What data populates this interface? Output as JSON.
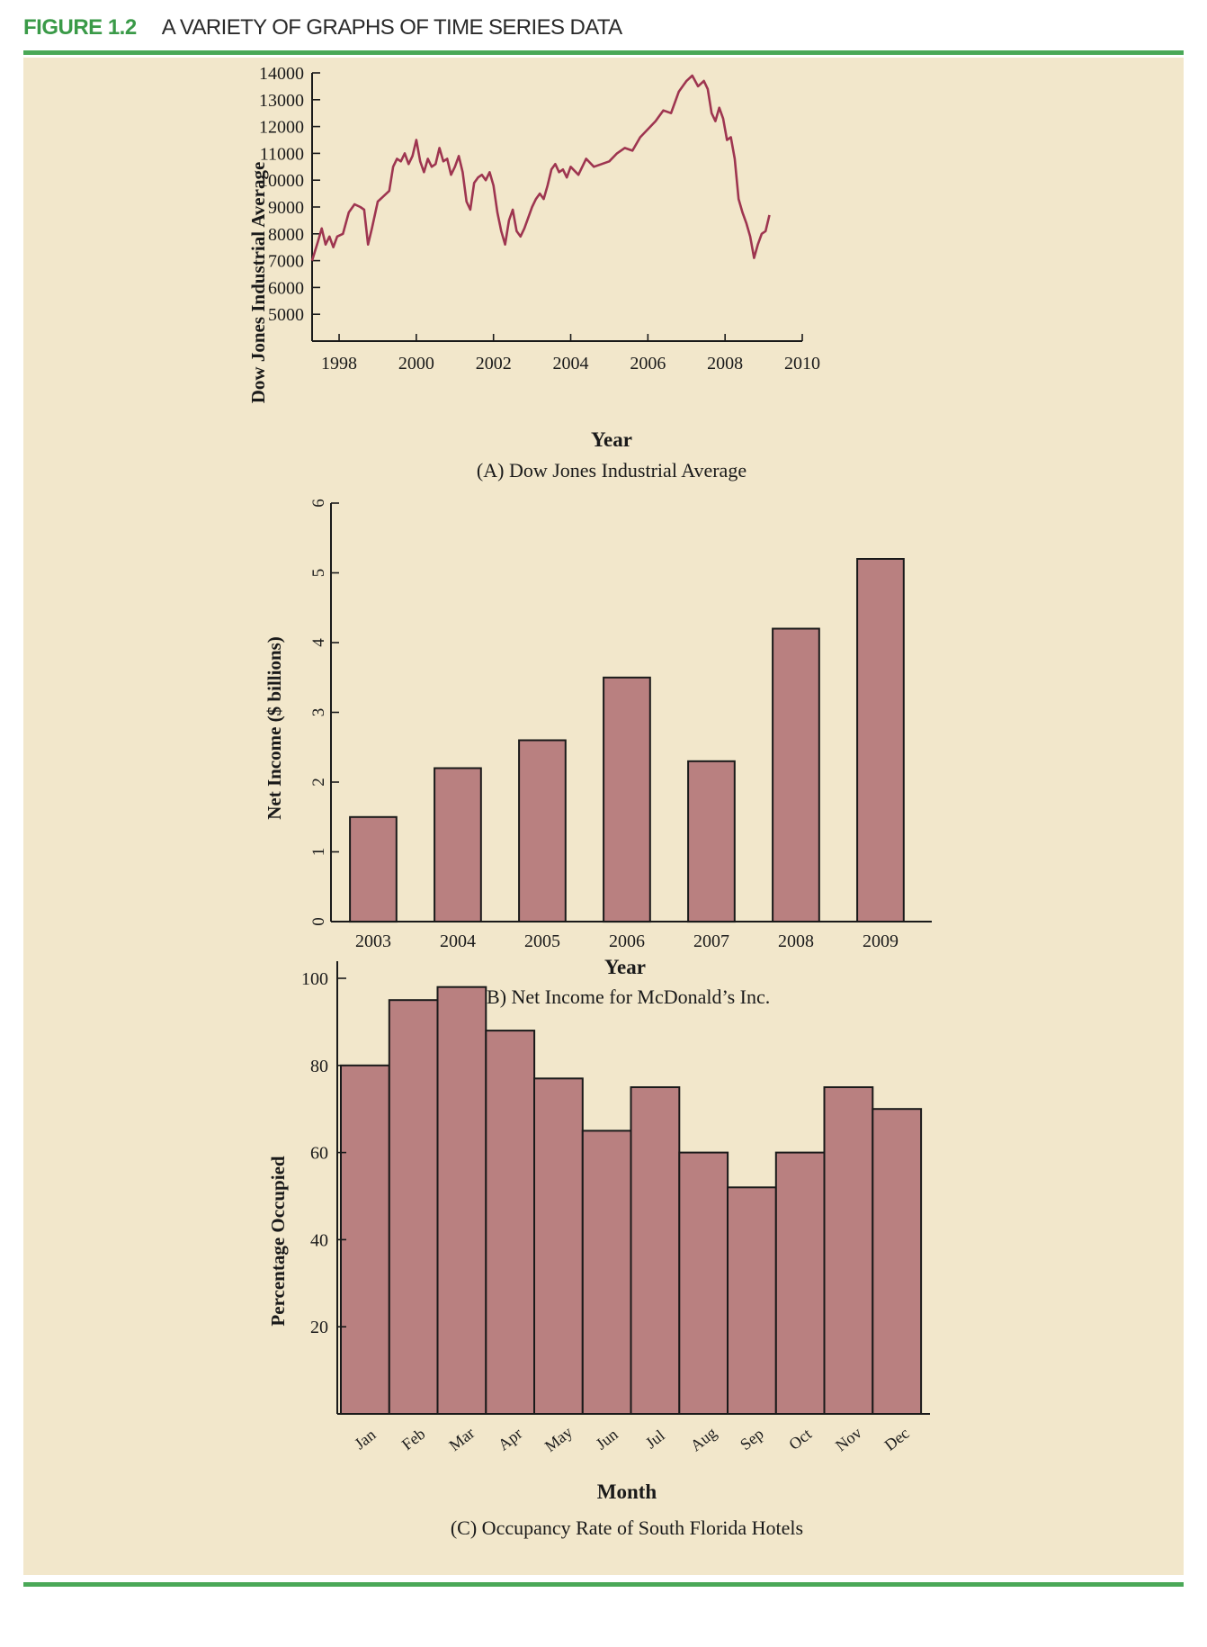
{
  "figure": {
    "label": "FIGURE 1.2",
    "title": "A VARIETY OF GRAPHS OF TIME SERIES DATA"
  },
  "colors": {
    "accent_green": "#4aa857",
    "panel_background": "#f2e7cb",
    "line_series": "#9e3550",
    "bar_fill": "#b98080",
    "bar_stroke": "#1a1a1a"
  },
  "chart_data": [
    {
      "type": "line",
      "caption": "(A) Dow Jones Industrial Average",
      "xlabel": "Year",
      "ylabel": "Dow Jones Industrial Average",
      "xlim": [
        1997.3,
        2010
      ],
      "ylim": [
        4000,
        14000
      ],
      "xticks": [
        1998,
        2000,
        2002,
        2004,
        2006,
        2008,
        2010
      ],
      "yticks": [
        5000,
        6000,
        7000,
        8000,
        9000,
        10000,
        11000,
        12000,
        13000,
        14000
      ],
      "x": [
        1997.3,
        1997.45,
        1997.55,
        1997.65,
        1997.75,
        1997.85,
        1997.95,
        1998.1,
        1998.25,
        1998.4,
        1998.55,
        1998.65,
        1998.75,
        1998.85,
        1999.0,
        1999.15,
        1999.3,
        1999.4,
        1999.5,
        1999.6,
        1999.7,
        1999.8,
        1999.9,
        2000.0,
        2000.1,
        2000.2,
        2000.3,
        2000.4,
        2000.5,
        2000.6,
        2000.7,
        2000.8,
        2000.9,
        2001.0,
        2001.1,
        2001.2,
        2001.3,
        2001.4,
        2001.5,
        2001.6,
        2001.7,
        2001.8,
        2001.9,
        2002.0,
        2002.1,
        2002.2,
        2002.3,
        2002.4,
        2002.5,
        2002.6,
        2002.7,
        2002.8,
        2002.9,
        2003.0,
        2003.1,
        2003.2,
        2003.3,
        2003.4,
        2003.5,
        2003.6,
        2003.7,
        2003.8,
        2003.9,
        2004.0,
        2004.2,
        2004.4,
        2004.6,
        2004.8,
        2005.0,
        2005.2,
        2005.4,
        2005.6,
        2005.8,
        2006.0,
        2006.2,
        2006.4,
        2006.6,
        2006.8,
        2007.0,
        2007.15,
        2007.3,
        2007.45,
        2007.55,
        2007.65,
        2007.75,
        2007.85,
        2007.95,
        2008.05,
        2008.15,
        2008.25,
        2008.35,
        2008.45,
        2008.55,
        2008.65,
        2008.75,
        2008.85,
        2008.95,
        2009.05,
        2009.15
      ],
      "y": [
        7000,
        7700,
        8200,
        7600,
        7900,
        7500,
        7900,
        8000,
        8800,
        9100,
        9000,
        8900,
        7600,
        8200,
        9200,
        9400,
        9600,
        10500,
        10800,
        10700,
        11000,
        10600,
        10900,
        11500,
        10700,
        10300,
        10800,
        10500,
        10600,
        11200,
        10700,
        10800,
        10200,
        10500,
        10900,
        10300,
        9200,
        8900,
        9900,
        10100,
        10200,
        10000,
        10300,
        9800,
        8800,
        8100,
        7600,
        8500,
        8900,
        8100,
        7900,
        8200,
        8600,
        9000,
        9300,
        9500,
        9300,
        9800,
        10400,
        10600,
        10300,
        10400,
        10100,
        10500,
        10200,
        10800,
        10500,
        10600,
        10700,
        11000,
        11200,
        11100,
        11600,
        11900,
        12200,
        12600,
        12500,
        13300,
        13700,
        13900,
        13500,
        13700,
        13400,
        12500,
        12200,
        12700,
        12300,
        11500,
        11600,
        10800,
        9300,
        8800,
        8400,
        7900,
        7100,
        7600,
        8000,
        8100,
        8700
      ]
    },
    {
      "type": "bar",
      "caption": "(B) Net Income for McDonald’s Inc.",
      "xlabel": "Year",
      "ylabel": "Net Income ($ billions)",
      "ylim": [
        0,
        6
      ],
      "yticks": [
        0,
        1,
        2,
        3,
        4,
        5,
        6
      ],
      "categories": [
        "2003",
        "2004",
        "2005",
        "2006",
        "2007",
        "2008",
        "2009"
      ],
      "values": [
        1.5,
        2.2,
        2.6,
        3.5,
        2.3,
        4.2,
        5.2
      ]
    },
    {
      "type": "bar",
      "caption": "(C) Occupancy Rate of South Florida Hotels",
      "xlabel": "Month",
      "ylabel": "Percentage Occupied",
      "ylim": [
        0,
        100
      ],
      "yticks": [
        20,
        40,
        60,
        80,
        100
      ],
      "categories": [
        "Jan",
        "Feb",
        "Mar",
        "Apr",
        "May",
        "Jun",
        "Jul",
        "Aug",
        "Sep",
        "Oct",
        "Nov",
        "Dec"
      ],
      "values": [
        80,
        95,
        98,
        88,
        77,
        65,
        75,
        60,
        52,
        60,
        75,
        70
      ]
    }
  ]
}
